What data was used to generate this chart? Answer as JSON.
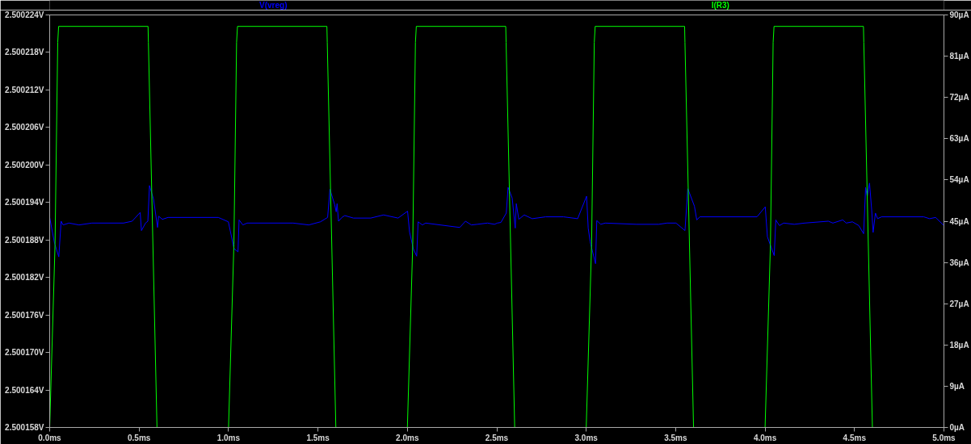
{
  "chart_data": {
    "type": "line",
    "xlim": [
      0,
      5
    ],
    "xticks": [
      {
        "value": 0,
        "label": "0.0ms"
      },
      {
        "value": 0.5,
        "label": "0.5ms"
      },
      {
        "value": 1,
        "label": "1.0ms"
      },
      {
        "value": 1.5,
        "label": "1.5ms"
      },
      {
        "value": 2,
        "label": "2.0ms"
      },
      {
        "value": 2.5,
        "label": "2.5ms"
      },
      {
        "value": 3,
        "label": "3.0ms"
      },
      {
        "value": 3.5,
        "label": "3.5ms"
      },
      {
        "value": 4,
        "label": "4.0ms"
      },
      {
        "value": 4.5,
        "label": "4.5ms"
      },
      {
        "value": 5,
        "label": "5.0ms"
      }
    ],
    "ylim": [
      2.500158,
      2.500224
    ],
    "yticks": [
      {
        "value": 2.500158,
        "label": "2.500158V"
      },
      {
        "value": 2.500164,
        "label": "2.500164V"
      },
      {
        "value": 2.50017,
        "label": "2.500170V"
      },
      {
        "value": 2.500176,
        "label": "2.500176V"
      },
      {
        "value": 2.500182,
        "label": "2.500182V"
      },
      {
        "value": 2.500188,
        "label": "2.500188V"
      },
      {
        "value": 2.500194,
        "label": "2.500194V"
      },
      {
        "value": 2.5002,
        "label": "2.500200V"
      },
      {
        "value": 2.500206,
        "label": "2.500206V"
      },
      {
        "value": 2.500212,
        "label": "2.500212V"
      },
      {
        "value": 2.500218,
        "label": "2.500218V"
      },
      {
        "value": 2.500224,
        "label": "2.500224V"
      }
    ],
    "y2lim": [
      0,
      90
    ],
    "y2ticks": [
      {
        "value": 0,
        "label": "0µA"
      },
      {
        "value": 9,
        "label": "9µA"
      },
      {
        "value": 18,
        "label": "18µA"
      },
      {
        "value": 27,
        "label": "27µA"
      },
      {
        "value": 36,
        "label": "36µA"
      },
      {
        "value": 45,
        "label": "45µA"
      },
      {
        "value": 54,
        "label": "54µA"
      },
      {
        "value": 63,
        "label": "63µA"
      },
      {
        "value": 72,
        "label": "72µA"
      },
      {
        "value": 81,
        "label": "81µA"
      },
      {
        "value": 90,
        "label": "90µA"
      }
    ],
    "grid": false,
    "series": [
      {
        "name": "V(vreg)",
        "color": "#0000ff",
        "x": [
          0,
          0.027,
          0.051,
          0.064,
          0.075,
          0.108,
          0.164,
          0.236,
          0.413,
          0.461,
          0.506,
          0.513,
          0.536,
          0.549,
          0.558,
          0.581,
          0.603,
          0.609,
          0.63,
          0.662,
          0.943,
          0.999,
          1.031,
          1.053,
          1.059,
          1.08,
          1.104,
          1.361,
          1.449,
          1.514,
          1.554,
          1.567,
          1.594,
          1.602,
          1.607,
          1.615,
          1.634,
          1.65,
          1.698,
          1.795,
          1.867,
          1.948,
          2.001,
          2.012,
          2.033,
          2.052,
          2.06,
          2.084,
          2.102,
          2.293,
          2.325,
          2.358,
          2.39,
          2.448,
          2.487,
          2.503,
          2.523,
          2.553,
          2.563,
          2.586,
          2.603,
          2.609,
          2.623,
          2.653,
          2.698,
          2.773,
          2.873,
          2.952,
          3.002,
          3.011,
          3.022,
          3.052,
          3.059,
          3.081,
          3.106,
          3.281,
          3.405,
          3.452,
          3.502,
          3.552,
          3.568,
          3.605,
          3.618,
          3.635,
          3.955,
          4.001,
          4.013,
          4.051,
          4.06,
          4.08,
          4.104,
          4.163,
          4.221,
          4.354,
          4.379,
          4.434,
          4.454,
          4.488,
          4.524,
          4.551,
          4.562,
          4.571,
          4.584,
          4.596,
          4.604,
          4.617,
          4.629,
          4.651,
          4.887,
          4.92,
          4.953,
          5
        ],
        "values": [
          2.5001916,
          2.5001875,
          2.5001853,
          2.500191,
          2.5001904,
          2.5001907,
          2.5001904,
          2.5001907,
          2.5001907,
          2.500191,
          2.5001924,
          2.5001895,
          2.5001907,
          2.500191,
          2.5001967,
          2.5001945,
          2.50019,
          2.5001918,
          2.5001913,
          2.5001916,
          2.5001916,
          2.5001909,
          2.5001866,
          2.5001861,
          2.5001912,
          2.5001904,
          2.5001907,
          2.5001907,
          2.5001904,
          2.5001909,
          2.5001916,
          2.5001961,
          2.5001936,
          2.5001925,
          2.5001938,
          2.500191,
          2.5001916,
          2.5001919,
          2.5001915,
          2.5001915,
          2.500192,
          2.5001915,
          2.5001926,
          2.5001893,
          2.5001866,
          2.5001854,
          2.5001909,
          2.5001904,
          2.5001907,
          2.50019,
          2.500191,
          2.5001904,
          2.5001905,
          2.5001907,
          2.5001905,
          2.5001907,
          2.5001908,
          2.5001923,
          2.5001964,
          2.5001947,
          2.5001899,
          2.5001938,
          2.5001913,
          2.500192,
          2.5001914,
          2.5001917,
          2.5001917,
          2.5001914,
          2.500195,
          2.5001899,
          2.5001877,
          2.5001842,
          2.5001911,
          2.5001905,
          2.5001907,
          2.5001905,
          2.5001905,
          2.5001907,
          2.5001907,
          2.5001895,
          2.5001962,
          2.5001934,
          2.5001912,
          2.5001917,
          2.5001917,
          2.5001933,
          2.5001885,
          2.5001855,
          2.5001912,
          2.5001903,
          2.5001907,
          2.5001905,
          2.5001907,
          2.500191,
          2.5001907,
          2.5001912,
          2.5001907,
          2.5001909,
          2.5001903,
          2.500189,
          2.5001964,
          2.500195,
          2.5001971,
          2.5001928,
          2.5001892,
          2.5001923,
          2.5001914,
          2.5001917,
          2.5001917,
          2.5001914,
          2.5001916,
          2.5001903
        ]
      },
      {
        "name": "I(R3)",
        "color": "#00ff00",
        "axis": "y2",
        "x": [
          0,
          0.03,
          0.045,
          0.05,
          0.55,
          0.552,
          0.6,
          1,
          1.03,
          1.045,
          1.05,
          1.55,
          1.552,
          1.6,
          2,
          2.03,
          2.045,
          2.05,
          2.55,
          2.552,
          2.6,
          3,
          3.03,
          3.045,
          3.05,
          3.55,
          3.552,
          3.6,
          4,
          4.03,
          4.045,
          4.05,
          4.55,
          4.552,
          4.6,
          5
        ],
        "values": [
          0,
          40,
          84,
          87.5,
          87.5,
          84,
          0,
          0,
          40,
          84,
          87.5,
          87.5,
          84,
          0,
          0,
          40,
          84,
          87.5,
          87.5,
          84,
          0,
          0,
          40,
          84,
          87.5,
          87.5,
          84,
          0,
          0,
          40,
          84,
          87.5,
          87.5,
          84,
          0,
          0
        ]
      }
    ]
  }
}
